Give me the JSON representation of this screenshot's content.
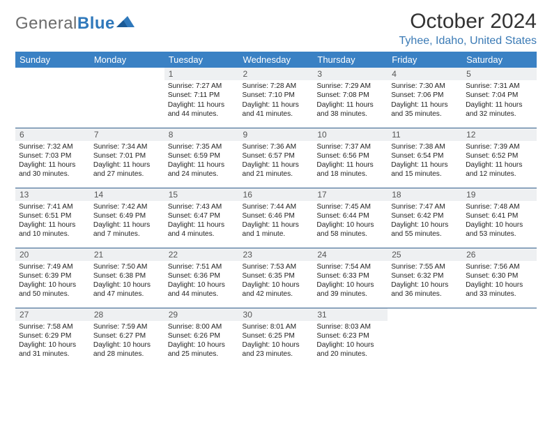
{
  "brand": {
    "part1": "General",
    "part2": "Blue"
  },
  "title": "October 2024",
  "location": "Tyhee, Idaho, United States",
  "colors": {
    "header_bg": "#3a81c4",
    "header_text": "#ffffff",
    "row_divider": "#2f5c8a",
    "daynum_bg": "#eef0f2",
    "brand_gray": "#6b6b6b",
    "brand_blue": "#2f78bb",
    "location_color": "#3a7ab5"
  },
  "weekdays": [
    "Sunday",
    "Monday",
    "Tuesday",
    "Wednesday",
    "Thursday",
    "Friday",
    "Saturday"
  ],
  "weeks": [
    [
      null,
      null,
      {
        "n": "1",
        "sr": "Sunrise: 7:27 AM",
        "ss": "Sunset: 7:11 PM",
        "dl": "Daylight: 11 hours and 44 minutes."
      },
      {
        "n": "2",
        "sr": "Sunrise: 7:28 AM",
        "ss": "Sunset: 7:10 PM",
        "dl": "Daylight: 11 hours and 41 minutes."
      },
      {
        "n": "3",
        "sr": "Sunrise: 7:29 AM",
        "ss": "Sunset: 7:08 PM",
        "dl": "Daylight: 11 hours and 38 minutes."
      },
      {
        "n": "4",
        "sr": "Sunrise: 7:30 AM",
        "ss": "Sunset: 7:06 PM",
        "dl": "Daylight: 11 hours and 35 minutes."
      },
      {
        "n": "5",
        "sr": "Sunrise: 7:31 AM",
        "ss": "Sunset: 7:04 PM",
        "dl": "Daylight: 11 hours and 32 minutes."
      }
    ],
    [
      {
        "n": "6",
        "sr": "Sunrise: 7:32 AM",
        "ss": "Sunset: 7:03 PM",
        "dl": "Daylight: 11 hours and 30 minutes."
      },
      {
        "n": "7",
        "sr": "Sunrise: 7:34 AM",
        "ss": "Sunset: 7:01 PM",
        "dl": "Daylight: 11 hours and 27 minutes."
      },
      {
        "n": "8",
        "sr": "Sunrise: 7:35 AM",
        "ss": "Sunset: 6:59 PM",
        "dl": "Daylight: 11 hours and 24 minutes."
      },
      {
        "n": "9",
        "sr": "Sunrise: 7:36 AM",
        "ss": "Sunset: 6:57 PM",
        "dl": "Daylight: 11 hours and 21 minutes."
      },
      {
        "n": "10",
        "sr": "Sunrise: 7:37 AM",
        "ss": "Sunset: 6:56 PM",
        "dl": "Daylight: 11 hours and 18 minutes."
      },
      {
        "n": "11",
        "sr": "Sunrise: 7:38 AM",
        "ss": "Sunset: 6:54 PM",
        "dl": "Daylight: 11 hours and 15 minutes."
      },
      {
        "n": "12",
        "sr": "Sunrise: 7:39 AM",
        "ss": "Sunset: 6:52 PM",
        "dl": "Daylight: 11 hours and 12 minutes."
      }
    ],
    [
      {
        "n": "13",
        "sr": "Sunrise: 7:41 AM",
        "ss": "Sunset: 6:51 PM",
        "dl": "Daylight: 11 hours and 10 minutes."
      },
      {
        "n": "14",
        "sr": "Sunrise: 7:42 AM",
        "ss": "Sunset: 6:49 PM",
        "dl": "Daylight: 11 hours and 7 minutes."
      },
      {
        "n": "15",
        "sr": "Sunrise: 7:43 AM",
        "ss": "Sunset: 6:47 PM",
        "dl": "Daylight: 11 hours and 4 minutes."
      },
      {
        "n": "16",
        "sr": "Sunrise: 7:44 AM",
        "ss": "Sunset: 6:46 PM",
        "dl": "Daylight: 11 hours and 1 minute."
      },
      {
        "n": "17",
        "sr": "Sunrise: 7:45 AM",
        "ss": "Sunset: 6:44 PM",
        "dl": "Daylight: 10 hours and 58 minutes."
      },
      {
        "n": "18",
        "sr": "Sunrise: 7:47 AM",
        "ss": "Sunset: 6:42 PM",
        "dl": "Daylight: 10 hours and 55 minutes."
      },
      {
        "n": "19",
        "sr": "Sunrise: 7:48 AM",
        "ss": "Sunset: 6:41 PM",
        "dl": "Daylight: 10 hours and 53 minutes."
      }
    ],
    [
      {
        "n": "20",
        "sr": "Sunrise: 7:49 AM",
        "ss": "Sunset: 6:39 PM",
        "dl": "Daylight: 10 hours and 50 minutes."
      },
      {
        "n": "21",
        "sr": "Sunrise: 7:50 AM",
        "ss": "Sunset: 6:38 PM",
        "dl": "Daylight: 10 hours and 47 minutes."
      },
      {
        "n": "22",
        "sr": "Sunrise: 7:51 AM",
        "ss": "Sunset: 6:36 PM",
        "dl": "Daylight: 10 hours and 44 minutes."
      },
      {
        "n": "23",
        "sr": "Sunrise: 7:53 AM",
        "ss": "Sunset: 6:35 PM",
        "dl": "Daylight: 10 hours and 42 minutes."
      },
      {
        "n": "24",
        "sr": "Sunrise: 7:54 AM",
        "ss": "Sunset: 6:33 PM",
        "dl": "Daylight: 10 hours and 39 minutes."
      },
      {
        "n": "25",
        "sr": "Sunrise: 7:55 AM",
        "ss": "Sunset: 6:32 PM",
        "dl": "Daylight: 10 hours and 36 minutes."
      },
      {
        "n": "26",
        "sr": "Sunrise: 7:56 AM",
        "ss": "Sunset: 6:30 PM",
        "dl": "Daylight: 10 hours and 33 minutes."
      }
    ],
    [
      {
        "n": "27",
        "sr": "Sunrise: 7:58 AM",
        "ss": "Sunset: 6:29 PM",
        "dl": "Daylight: 10 hours and 31 minutes."
      },
      {
        "n": "28",
        "sr": "Sunrise: 7:59 AM",
        "ss": "Sunset: 6:27 PM",
        "dl": "Daylight: 10 hours and 28 minutes."
      },
      {
        "n": "29",
        "sr": "Sunrise: 8:00 AM",
        "ss": "Sunset: 6:26 PM",
        "dl": "Daylight: 10 hours and 25 minutes."
      },
      {
        "n": "30",
        "sr": "Sunrise: 8:01 AM",
        "ss": "Sunset: 6:25 PM",
        "dl": "Daylight: 10 hours and 23 minutes."
      },
      {
        "n": "31",
        "sr": "Sunrise: 8:03 AM",
        "ss": "Sunset: 6:23 PM",
        "dl": "Daylight: 10 hours and 20 minutes."
      },
      null,
      null
    ]
  ]
}
